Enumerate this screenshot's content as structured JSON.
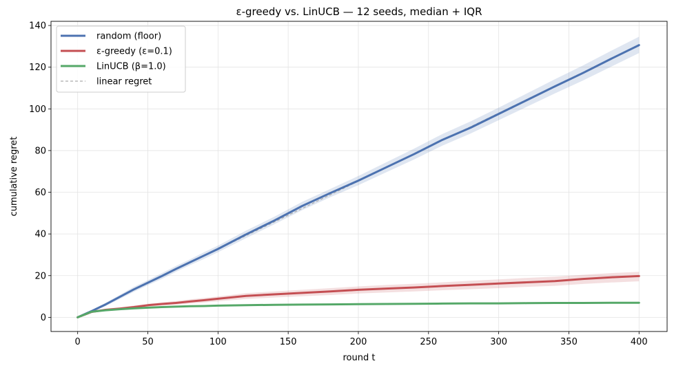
{
  "chart_data": {
    "type": "line",
    "title": "ε-greedy vs. LinUCB — 12 seeds, median + IQR",
    "xlabel": "round t",
    "ylabel": "cumulative regret",
    "xlim": [
      -19,
      420
    ],
    "ylim": [
      -6.8,
      142
    ],
    "xticks": [
      0,
      50,
      100,
      150,
      200,
      250,
      300,
      350,
      400
    ],
    "yticks": [
      0,
      20,
      40,
      60,
      80,
      100,
      120,
      140
    ],
    "grid": true,
    "legend_position": "top-left",
    "x": [
      0,
      10,
      20,
      30,
      40,
      50,
      60,
      70,
      80,
      90,
      100,
      120,
      140,
      160,
      180,
      200,
      220,
      240,
      260,
      280,
      300,
      320,
      340,
      360,
      380,
      400
    ],
    "series": [
      {
        "name": "random (floor)",
        "color": "#4c72b0",
        "median": [
          0,
          3.0,
          6.2,
          9.8,
          13.4,
          16.6,
          19.8,
          23.2,
          26.4,
          29.6,
          32.8,
          39.8,
          46.4,
          53.4,
          59.6,
          65.6,
          72.0,
          78.4,
          85.2,
          91.0,
          97.6,
          104.2,
          110.8,
          117.2,
          124.0,
          130.6
        ],
        "q1": [
          0,
          2.4,
          5.4,
          8.8,
          12.2,
          15.4,
          18.4,
          21.8,
          25.0,
          28.0,
          31.2,
          38.0,
          44.6,
          51.4,
          57.6,
          63.4,
          69.6,
          75.8,
          82.4,
          88.2,
          94.6,
          101.0,
          107.4,
          113.6,
          120.2,
          126.8
        ],
        "q3": [
          0,
          3.6,
          7.0,
          10.8,
          14.6,
          17.8,
          21.2,
          24.6,
          27.8,
          31.2,
          34.4,
          41.6,
          48.2,
          55.4,
          61.6,
          67.8,
          74.4,
          81.0,
          88.0,
          94.0,
          100.6,
          107.4,
          114.2,
          120.8,
          127.8,
          134.6
        ]
      },
      {
        "name": "ε-greedy  (ε=0.1)",
        "color": "#c44e52",
        "median": [
          0,
          2.6,
          3.6,
          4.2,
          4.9,
          5.8,
          6.4,
          6.9,
          7.6,
          8.2,
          8.9,
          10.3,
          11.0,
          11.7,
          12.4,
          13.2,
          13.8,
          14.3,
          15.0,
          15.6,
          16.2,
          16.8,
          17.4,
          18.4,
          19.2,
          19.8
        ],
        "q1": [
          0,
          2.2,
          3.2,
          3.7,
          4.3,
          5.1,
          5.6,
          6.0,
          6.6,
          7.1,
          7.7,
          8.8,
          9.5,
          10.1,
          10.7,
          11.4,
          11.9,
          12.4,
          13.0,
          13.5,
          14.0,
          14.6,
          15.1,
          16.0,
          16.7,
          17.3
        ],
        "q3": [
          0,
          3.0,
          4.2,
          4.8,
          5.6,
          6.5,
          7.2,
          7.8,
          8.6,
          9.3,
          10.0,
          11.6,
          12.4,
          13.2,
          14.0,
          14.8,
          15.5,
          16.1,
          16.8,
          17.5,
          18.2,
          18.9,
          19.5,
          20.4,
          21.2,
          21.8
        ]
      },
      {
        "name": "LinUCB  (β=1.0)",
        "color": "#55a868",
        "median": [
          0,
          2.7,
          3.4,
          3.9,
          4.3,
          4.6,
          4.9,
          5.1,
          5.3,
          5.4,
          5.6,
          5.8,
          6.0,
          6.1,
          6.2,
          6.3,
          6.4,
          6.5,
          6.6,
          6.7,
          6.7,
          6.8,
          6.9,
          6.9,
          7.0,
          7.0
        ],
        "q1": [
          0,
          2.5,
          3.1,
          3.6,
          4.0,
          4.3,
          4.6,
          4.8,
          5.0,
          5.1,
          5.3,
          5.5,
          5.7,
          5.8,
          5.9,
          6.0,
          6.1,
          6.2,
          6.3,
          6.4,
          6.4,
          6.5,
          6.6,
          6.6,
          6.7,
          6.7
        ],
        "q3": [
          0,
          2.9,
          3.7,
          4.2,
          4.6,
          4.9,
          5.2,
          5.4,
          5.6,
          5.7,
          5.9,
          6.1,
          6.3,
          6.4,
          6.5,
          6.6,
          6.7,
          6.8,
          6.9,
          7.0,
          7.0,
          7.1,
          7.2,
          7.2,
          7.3,
          7.3
        ]
      }
    ],
    "reference_line": {
      "name": "linear regret",
      "color": "#aaaaaa",
      "style": "dashed",
      "x": [
        0,
        400
      ],
      "y": [
        0,
        130.6
      ]
    }
  }
}
